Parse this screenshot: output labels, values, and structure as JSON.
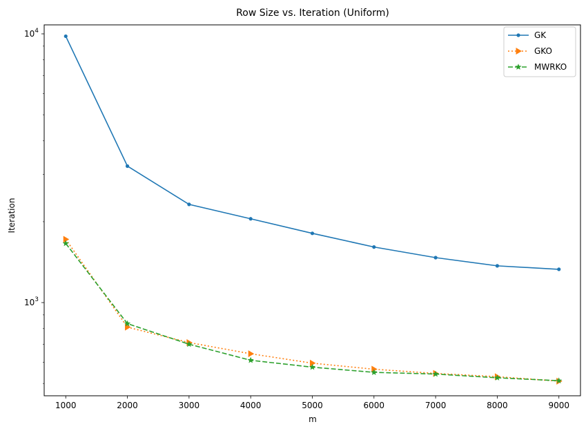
{
  "chart_data": {
    "type": "line",
    "title": "Row Size vs. Iteration (Uniform)",
    "xlabel": "m",
    "ylabel": "Iteration",
    "yscale": "log",
    "xlim": [
      650,
      9350
    ],
    "ylim": [
      450,
      10800
    ],
    "x": [
      1000,
      2000,
      3000,
      4000,
      5000,
      6000,
      7000,
      8000,
      9000
    ],
    "xticks": [
      "1000",
      "2000",
      "3000",
      "4000",
      "5000",
      "6000",
      "7000",
      "8000",
      "9000"
    ],
    "ytick_major": [
      {
        "value": 1000,
        "base": "10",
        "exp": "3"
      },
      {
        "value": 10000,
        "base": "10",
        "exp": "4"
      }
    ],
    "grid": false,
    "legend_position": "upper right",
    "series": [
      {
        "name": "GK",
        "color": "#1f77b4",
        "marker": "point",
        "linestyle": "solid",
        "values": [
          9800,
          3220,
          2320,
          2050,
          1810,
          1610,
          1470,
          1370,
          1330
        ]
      },
      {
        "name": "GKO",
        "color": "#ff7f0e",
        "marker": "triangle-right",
        "linestyle": "dotted",
        "values": [
          1720,
          810,
          710,
          645,
          595,
          565,
          545,
          530,
          510
        ]
      },
      {
        "name": "MWRKO",
        "color": "#2ca02c",
        "marker": "star",
        "linestyle": "dashed",
        "values": [
          1660,
          835,
          700,
          610,
          575,
          550,
          542,
          525,
          512
        ]
      }
    ]
  }
}
